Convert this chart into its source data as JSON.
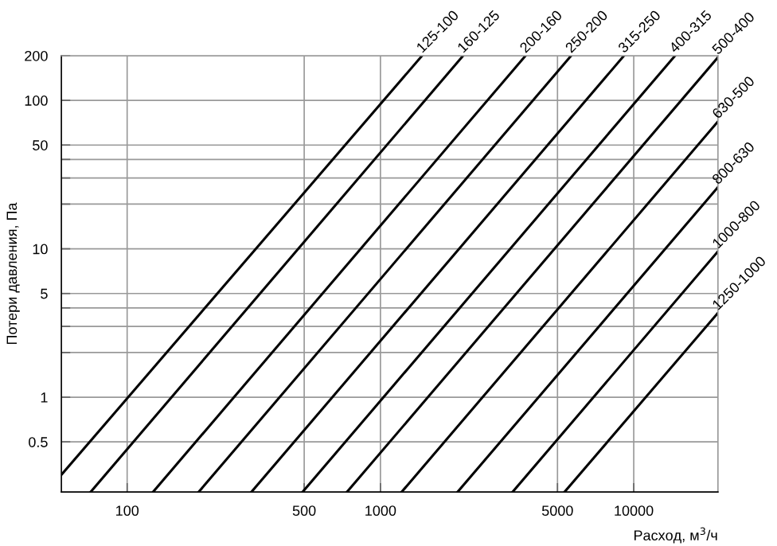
{
  "chart_data": {
    "type": "line",
    "xlabel": "Расход, м$^{3}$/ч",
    "ylabel": "Потери давления, Па",
    "log": "xy",
    "xlim": [
      55,
      21500
    ],
    "ylim": [
      0.23,
      200
    ],
    "xticks": [
      100,
      500,
      1000,
      5000,
      10000
    ],
    "yticks": [
      0.5,
      1,
      {
        "value": 2,
        "label": null
      },
      {
        "value": 3,
        "label": null
      },
      {
        "value": 4,
        "label": null
      },
      5,
      10,
      {
        "value": 20,
        "label": null
      },
      {
        "value": 30,
        "label": null
      },
      {
        "value": 40,
        "label": null
      },
      50,
      100,
      200
    ],
    "grid": true,
    "legend": false,
    "marker": "none",
    "line_style": "solid",
    "series": [
      {
        "name": "125-100",
        "color": "#000000",
        "x": [
          55,
          1460
        ],
        "values": [
          0.3,
          200
        ]
      },
      {
        "name": "160-125",
        "color": "#000000",
        "x": [
          71.8,
          2120
        ],
        "values": [
          0.23,
          200
        ]
      },
      {
        "name": "200-160",
        "color": "#000000",
        "x": [
          126.6,
          3740
        ],
        "values": [
          0.23,
          200
        ]
      },
      {
        "name": "250-200",
        "color": "#000000",
        "x": [
          191.7,
          5660
        ],
        "values": [
          0.23,
          200
        ]
      },
      {
        "name": "315-250",
        "color": "#000000",
        "x": [
          309.6,
          9150
        ],
        "values": [
          0.23,
          200
        ]
      },
      {
        "name": "400-315",
        "color": "#000000",
        "x": [
          493,
          14560
        ],
        "values": [
          0.23,
          200
        ]
      },
      {
        "name": "500-400",
        "color": "#000000",
        "x": [
          738,
          21500
        ],
        "values": [
          0.23,
          195
        ]
      },
      {
        "name": "630-500",
        "color": "#000000",
        "x": [
          1213,
          21500
        ],
        "values": [
          0.23,
          72
        ]
      },
      {
        "name": "800-630",
        "color": "#000000",
        "x": [
          2017,
          21500
        ],
        "values": [
          0.23,
          26
        ]
      },
      {
        "name": "1000-800",
        "color": "#000000",
        "x": [
          3326,
          21500
        ],
        "values": [
          0.23,
          9.6
        ]
      },
      {
        "name": "1250-1000",
        "color": "#000000",
        "x": [
          5333,
          21500
        ],
        "values": [
          0.23,
          3.7
        ]
      }
    ]
  }
}
